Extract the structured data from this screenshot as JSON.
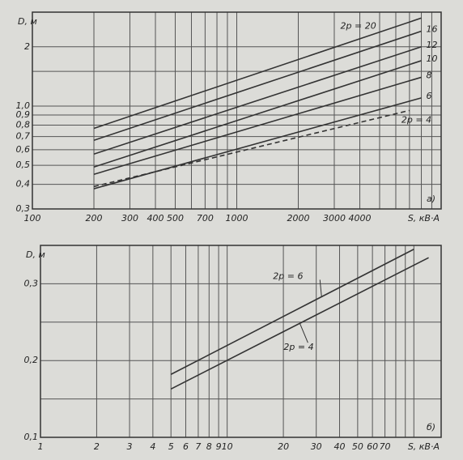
{
  "chart_data": [
    {
      "type": "line",
      "panel": "а)",
      "ylabel": "D, м",
      "xlabel": "S, кВ·А",
      "xlog": true,
      "ylog": true,
      "grid": true,
      "color": "#333333",
      "xlim": [
        100,
        10000
      ],
      "ylim": [
        0.3,
        3
      ],
      "xticks": [
        100,
        200,
        300,
        400,
        500,
        700,
        1000,
        2000,
        3000,
        4000
      ],
      "minor_xticks": [
        600,
        800,
        900,
        5000,
        6000,
        7000,
        8000,
        9000
      ],
      "yticks": [
        {
          "value": 0.3,
          "label": "0,3"
        },
        {
          "value": 0.4,
          "label": "0,4"
        },
        {
          "value": 0.5,
          "label": "0,5"
        },
        {
          "value": 0.6,
          "label": "0,6"
        },
        {
          "value": 0.7,
          "label": "0,7"
        },
        {
          "value": 0.8,
          "label": "0,8"
        },
        {
          "value": 0.9,
          "label": "0,9"
        },
        {
          "value": 1.0,
          "label": "1,0"
        },
        2
      ],
      "minor_yticks": [
        1.5
      ],
      "series": [
        {
          "name": "2p = 20",
          "x": [
            200,
            8000
          ],
          "values": [
            0.77,
            2.8
          ],
          "dash": false
        },
        {
          "name": "16",
          "x": [
            200,
            8000
          ],
          "values": [
            0.67,
            2.4
          ],
          "dash": false
        },
        {
          "name": "12",
          "x": [
            200,
            8000
          ],
          "values": [
            0.57,
            2.0
          ],
          "dash": false
        },
        {
          "name": "10",
          "x": [
            200,
            8000
          ],
          "values": [
            0.49,
            1.7
          ],
          "dash": false
        },
        {
          "name": "8",
          "x": [
            200,
            8000
          ],
          "values": [
            0.45,
            1.4
          ],
          "dash": false
        },
        {
          "name": "6",
          "x": [
            200,
            8000
          ],
          "values": [
            0.38,
            1.1
          ],
          "dash": false
        },
        {
          "name": "2p = 4",
          "x": [
            200,
            7000
          ],
          "values": [
            0.39,
            0.95
          ],
          "dash": true
        }
      ]
    },
    {
      "type": "line",
      "panel": "б)",
      "ylabel": "D, м",
      "xlabel": "S, кВ·А",
      "xlog": true,
      "ylog": false,
      "grid": true,
      "color": "#333333",
      "xlim": [
        1,
        140
      ],
      "ylim": [
        0.1,
        0.35
      ],
      "xticks": [
        1,
        2,
        3,
        4,
        5,
        6,
        7,
        8,
        9,
        10,
        20,
        30,
        40,
        50,
        60,
        70
      ],
      "minor_xticks": [
        80,
        90,
        100
      ],
      "yticks": [
        {
          "value": 0.1,
          "label": "0,1"
        },
        {
          "value": 0.2,
          "label": "0,2"
        },
        {
          "value": 0.3,
          "label": "0,3"
        }
      ],
      "minor_yticks": [
        0.15,
        0.25
      ],
      "series": [
        {
          "name": "2p = 6",
          "x": [
            5,
            100
          ],
          "values": [
            0.182,
            0.345
          ],
          "dash": false
        },
        {
          "name": "2p = 4",
          "x": [
            5,
            120
          ],
          "values": [
            0.163,
            0.334
          ],
          "dash": false
        }
      ]
    }
  ]
}
